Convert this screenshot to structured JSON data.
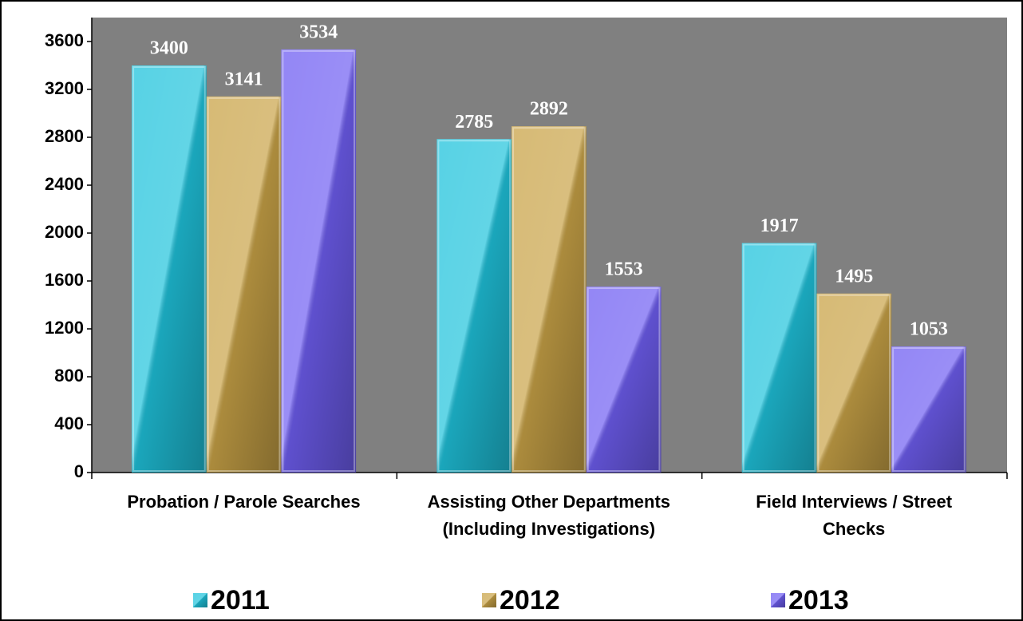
{
  "chart_data": {
    "type": "bar",
    "categories": [
      "Probation / Parole Searches",
      "Assisting Other Departments\n(Including Investigations)",
      "Field Interviews / Street\nChecks"
    ],
    "series": [
      {
        "name": "2011",
        "color": "#1fc3dc",
        "values": [
          3400,
          2785,
          1917
        ]
      },
      {
        "name": "2012",
        "color": "#c9a347",
        "values": [
          3141,
          2892,
          1495
        ]
      },
      {
        "name": "2013",
        "color": "#6f5ef2",
        "values": [
          3534,
          1553,
          1053
        ]
      }
    ],
    "ylim": [
      0,
      3800
    ],
    "yticks": [
      0,
      400,
      800,
      1200,
      1600,
      2000,
      2400,
      2800,
      3200,
      3600
    ],
    "legend": "bottom"
  }
}
